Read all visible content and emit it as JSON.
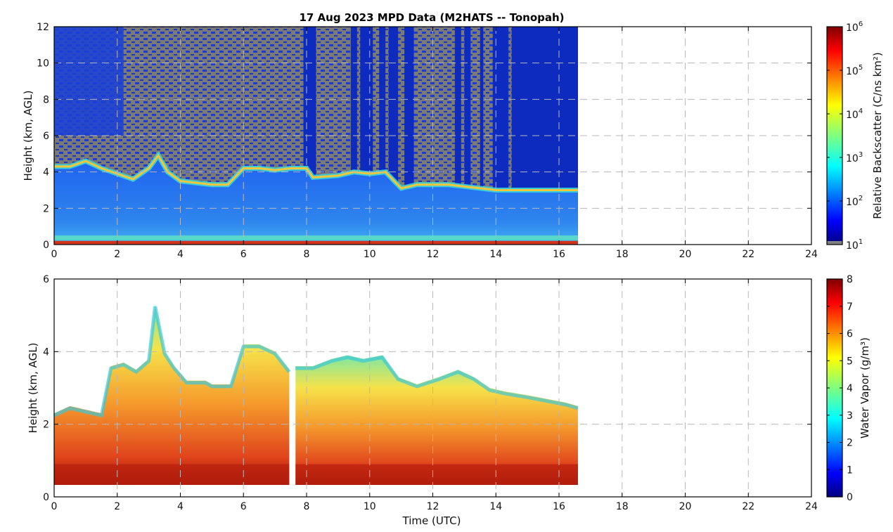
{
  "figure": {
    "title": "17 Aug 2023 MPD Data (M2HATS -- Tonopah)",
    "xlabel": "Time (UTC)"
  },
  "chart_data": [
    {
      "type": "heatmap",
      "name": "backscatter",
      "xlabel": "",
      "ylabel": "Height (km, AGL)",
      "xlim": [
        0,
        24
      ],
      "ylim": [
        0,
        12
      ],
      "xticks": [
        0,
        2,
        4,
        6,
        8,
        10,
        12,
        14,
        16,
        18,
        20,
        22,
        24
      ],
      "yticks": [
        0,
        2,
        4,
        6,
        8,
        10,
        12
      ],
      "grid": true,
      "data_end_hour": 16.6,
      "colorbar": {
        "label": "Relative Backscatter (C/ns km²)",
        "scale": "log",
        "ticks": [
          {
            "base": "10",
            "exp": "1"
          },
          {
            "base": "10",
            "exp": "2"
          },
          {
            "base": "10",
            "exp": "3"
          },
          {
            "base": "10",
            "exp": "4"
          },
          {
            "base": "10",
            "exp": "5"
          },
          {
            "base": "10",
            "exp": "6"
          }
        ],
        "range": [
          1,
          6
        ]
      },
      "aerosol_layer_top_km": [
        [
          0.0,
          4.3
        ],
        [
          0.5,
          4.3
        ],
        [
          1.0,
          4.6
        ],
        [
          1.5,
          4.2
        ],
        [
          2.0,
          3.9
        ],
        [
          2.5,
          3.6
        ],
        [
          3.0,
          4.2
        ],
        [
          3.3,
          4.9
        ],
        [
          3.6,
          4.0
        ],
        [
          4.0,
          3.5
        ],
        [
          4.5,
          3.4
        ],
        [
          5.0,
          3.3
        ],
        [
          5.5,
          3.3
        ],
        [
          6.0,
          4.2
        ],
        [
          6.5,
          4.2
        ],
        [
          7.0,
          4.1
        ],
        [
          7.5,
          4.2
        ],
        [
          8.0,
          4.2
        ],
        [
          8.2,
          3.7
        ],
        [
          9.0,
          3.8
        ],
        [
          9.5,
          4.0
        ],
        [
          10.0,
          3.9
        ],
        [
          10.5,
          4.0
        ],
        [
          11.0,
          3.1
        ],
        [
          11.5,
          3.3
        ],
        [
          12.0,
          3.3
        ],
        [
          12.5,
          3.3
        ],
        [
          13.0,
          3.2
        ],
        [
          13.5,
          3.1
        ],
        [
          14.0,
          3.0
        ],
        [
          14.5,
          3.0
        ],
        [
          16.6,
          3.0
        ]
      ],
      "cloud_columns": [
        {
          "start": 7.9,
          "end": 8.3
        },
        {
          "start": 9.4,
          "end": 9.6
        },
        {
          "start": 9.7,
          "end": 10.1
        },
        {
          "start": 10.3,
          "end": 10.5
        },
        {
          "start": 10.6,
          "end": 10.9
        },
        {
          "start": 11.1,
          "end": 11.4
        },
        {
          "start": 12.7,
          "end": 12.9
        },
        {
          "start": 13.0,
          "end": 13.2
        },
        {
          "start": 13.5,
          "end": 13.6
        },
        {
          "start": 13.9,
          "end": 14.4
        },
        {
          "start": 14.5,
          "end": 16.6
        }
      ]
    },
    {
      "type": "heatmap",
      "name": "water_vapor",
      "xlabel": "Time (UTC)",
      "ylabel": "Height (km, AGL)",
      "xlim": [
        0,
        24
      ],
      "ylim": [
        0,
        6
      ],
      "xticks": [
        0,
        2,
        4,
        6,
        8,
        10,
        12,
        14,
        16,
        18,
        20,
        22,
        24
      ],
      "yticks": [
        0,
        2,
        4,
        6
      ],
      "grid": true,
      "data_end_hour": 16.6,
      "data_bottom_km": 0.33,
      "gap_hours": [
        7.45,
        7.65
      ],
      "colorbar": {
        "label": "Water Vapor (g/m³)",
        "ticks": [
          0,
          1,
          2,
          3,
          4,
          5,
          6,
          7,
          8
        ],
        "range": [
          0,
          8
        ]
      },
      "top_of_data_km": [
        [
          0.0,
          2.3
        ],
        [
          0.5,
          2.5
        ],
        [
          1.0,
          2.4
        ],
        [
          1.5,
          2.3
        ],
        [
          1.8,
          3.6
        ],
        [
          2.2,
          3.7
        ],
        [
          2.6,
          3.5
        ],
        [
          3.0,
          3.8
        ],
        [
          3.2,
          5.3
        ],
        [
          3.5,
          4.0
        ],
        [
          3.8,
          3.6
        ],
        [
          4.2,
          3.2
        ],
        [
          4.8,
          3.2
        ],
        [
          5.0,
          3.1
        ],
        [
          5.6,
          3.1
        ],
        [
          6.0,
          4.2
        ],
        [
          6.5,
          4.2
        ],
        [
          7.0,
          4.0
        ],
        [
          7.45,
          3.5
        ],
        [
          7.65,
          3.6
        ],
        [
          8.2,
          3.6
        ],
        [
          8.8,
          3.8
        ],
        [
          9.3,
          3.9
        ],
        [
          9.8,
          3.8
        ],
        [
          10.4,
          3.9
        ],
        [
          10.9,
          3.3
        ],
        [
          11.5,
          3.1
        ],
        [
          12.2,
          3.3
        ],
        [
          12.8,
          3.5
        ],
        [
          13.3,
          3.3
        ],
        [
          13.8,
          3.0
        ],
        [
          14.3,
          2.9
        ],
        [
          15.0,
          2.8
        ],
        [
          15.6,
          2.7
        ],
        [
          16.2,
          2.6
        ],
        [
          16.6,
          2.5
        ]
      ]
    }
  ]
}
